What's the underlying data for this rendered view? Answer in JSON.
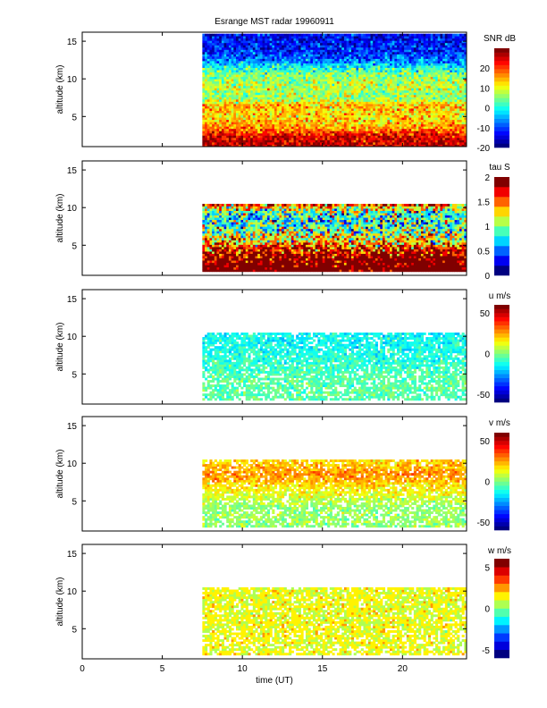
{
  "chart_data": {
    "type": "heatmap",
    "title": "Esrange MST radar 19960911",
    "xlabel": "time (UT)",
    "xlim": [
      0,
      24
    ],
    "xticks": [
      0,
      5,
      10,
      15,
      20
    ],
    "data_start_time": 7.5,
    "panels": [
      {
        "name": "snr",
        "ylabel": "altitude (km)",
        "ylim": [
          1,
          16.2
        ],
        "yticks": [
          5,
          10,
          15
        ],
        "colorbar_label": "SNR dB",
        "clim": [
          -20,
          30
        ],
        "cticks": [
          -20,
          -10,
          0,
          10,
          20
        ],
        "levels": 24,
        "alt_range": [
          1,
          16
        ],
        "missing_fraction": 0.0,
        "noise": 4,
        "profile": [
          [
            1,
            27
          ],
          [
            2.5,
            24
          ],
          [
            3.5,
            16
          ],
          [
            5,
            12
          ],
          [
            6.5,
            14
          ],
          [
            7.5,
            6
          ],
          [
            9,
            8
          ],
          [
            10.5,
            6
          ],
          [
            11.5,
            0
          ],
          [
            12.5,
            -8
          ],
          [
            14,
            -12
          ],
          [
            16,
            -14
          ]
        ]
      },
      {
        "name": "tau",
        "ylabel": "altitude (km)",
        "ylim": [
          1,
          16.2
        ],
        "yticks": [
          5,
          10,
          15
        ],
        "colorbar_label": "tau S",
        "clim": [
          0,
          2
        ],
        "cticks": [
          0,
          0.5,
          1,
          1.5,
          2
        ],
        "levels": 10,
        "alt_range": [
          1.5,
          10.5
        ],
        "missing_fraction": 0.0,
        "noise": 0.35,
        "profile": [
          [
            1.5,
            2.2
          ],
          [
            3,
            2.1
          ],
          [
            4.5,
            1.7
          ],
          [
            5.5,
            1.3
          ],
          [
            7,
            1.0
          ],
          [
            8.5,
            0.8
          ],
          [
            9.5,
            0.9
          ],
          [
            10.5,
            1.6
          ]
        ]
      },
      {
        "name": "u",
        "ylabel": "altitude (km)",
        "ylim": [
          1,
          16.2
        ],
        "yticks": [
          5,
          10,
          15
        ],
        "colorbar_label": "u m/s",
        "clim": [
          -60,
          60
        ],
        "cticks": [
          -50,
          0,
          50
        ],
        "levels": 24,
        "alt_range": [
          1.5,
          10.5
        ],
        "missing_fraction": 0.18,
        "noise": 5,
        "profile": [
          [
            1.5,
            -5
          ],
          [
            4,
            -4
          ],
          [
            6,
            -8
          ],
          [
            8,
            -12
          ],
          [
            10.5,
            -14
          ]
        ]
      },
      {
        "name": "v",
        "ylabel": "altitude (km)",
        "ylim": [
          1,
          16.2
        ],
        "yticks": [
          5,
          10,
          15
        ],
        "colorbar_label": "v m/s",
        "clim": [
          -60,
          60
        ],
        "cticks": [
          -50,
          0,
          50
        ],
        "levels": 24,
        "alt_range": [
          1.5,
          10.5
        ],
        "missing_fraction": 0.18,
        "noise": 5,
        "profile": [
          [
            1.5,
            2
          ],
          [
            4.5,
            3
          ],
          [
            6,
            12
          ],
          [
            7.5,
            20
          ],
          [
            8.5,
            28
          ],
          [
            9.5,
            22
          ],
          [
            10.5,
            18
          ]
        ]
      },
      {
        "name": "w",
        "ylabel": "altitude (km)",
        "ylim": [
          1,
          16.2
        ],
        "yticks": [
          5,
          10,
          15
        ],
        "colorbar_label": "w m/s",
        "clim": [
          -6,
          6
        ],
        "cticks": [
          -5,
          0,
          5
        ],
        "levels": 12,
        "alt_range": [
          1.5,
          10.5
        ],
        "missing_fraction": 0.18,
        "noise": 0.5,
        "profile": [
          [
            1.5,
            1.2
          ],
          [
            10.5,
            1.2
          ]
        ]
      }
    ]
  }
}
